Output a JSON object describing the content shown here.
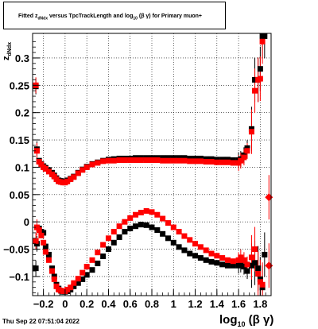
{
  "title": {
    "prefix": "Fitted  z",
    "sub": "dNdx",
    "mid": "  versus TpcTrackLength and log",
    "sub2": "10",
    "suffix": " (β γ) for Primary muon+"
  },
  "footer": {
    "date": "Thu Sep 22 07:51:04 2022"
  },
  "axes": {
    "ylabel_main": "z",
    "ylabel_sub": "dNdx",
    "xlabel_main": "log",
    "xlabel_sub": "10",
    "xlabel_tail": " (β γ)"
  },
  "chart_data": {
    "type": "scatter",
    "xlim": [
      -0.3,
      1.9
    ],
    "ylim": [
      -0.135,
      0.345
    ],
    "xticks": [
      -0.2,
      0,
      0.2,
      0.4,
      0.6,
      0.8,
      1,
      1.2,
      1.4,
      1.6,
      1.8
    ],
    "xtick_labels": [
      "−0.2",
      "0",
      "0.2",
      "0.4",
      "0.6",
      "0.8",
      "1",
      "1.2",
      "1.4",
      "1.6",
      "1.8"
    ],
    "yticks": [
      -0.1,
      -0.05,
      0,
      0.05,
      0.1,
      0.15,
      0.2,
      0.25,
      0.3
    ],
    "ytick_labels": [
      "−0.1",
      "−0.05",
      "0",
      "0.05",
      "0.1",
      "0.15",
      "0.2",
      "0.25",
      "0.3"
    ],
    "grid": true,
    "series": [
      {
        "color": "#000000",
        "marker": "square",
        "x": [
          -0.27,
          -0.26,
          -0.24,
          -0.22,
          -0.2,
          -0.18,
          -0.15,
          -0.12,
          -0.1,
          -0.08,
          -0.06,
          -0.04,
          -0.02,
          0.0,
          0.02,
          0.05,
          0.08,
          0.12,
          0.16,
          0.2,
          0.25,
          0.3,
          0.35,
          0.4,
          0.45,
          0.5,
          0.55,
          0.6,
          0.65,
          0.7,
          0.75,
          0.8,
          0.85,
          0.9,
          0.95,
          1.0,
          1.05,
          1.1,
          1.15,
          1.2,
          1.25,
          1.3,
          1.35,
          1.4,
          1.45,
          1.5,
          1.55,
          1.6,
          1.62,
          1.65,
          1.68,
          1.72,
          1.75,
          1.78,
          1.8,
          1.82,
          1.84
        ],
        "y_upper": [
          0.248,
          0.133,
          0.112,
          0.106,
          0.102,
          0.099,
          0.095,
          0.09,
          0.085,
          0.08,
          0.076,
          0.075,
          0.074,
          0.074,
          0.076,
          0.079,
          0.083,
          0.09,
          0.096,
          0.101,
          0.106,
          0.109,
          0.112,
          0.114,
          0.115,
          0.116,
          0.116,
          0.116,
          0.117,
          0.117,
          0.117,
          0.117,
          0.117,
          0.117,
          0.117,
          0.117,
          0.117,
          0.117,
          0.116,
          0.116,
          0.116,
          0.115,
          0.115,
          0.114,
          0.114,
          0.114,
          0.113,
          0.113,
          0.115,
          0.122,
          0.135,
          0.17,
          0.26,
          0.26,
          0.28,
          0.34,
          0.34
        ],
        "y_lower": [
          -0.085,
          -0.04,
          -0.012,
          -0.018,
          -0.02,
          -0.045,
          -0.06,
          -0.085,
          -0.1,
          -0.115,
          -0.122,
          -0.126,
          -0.128,
          -0.128,
          -0.127,
          -0.124,
          -0.118,
          -0.112,
          -0.105,
          -0.097,
          -0.088,
          -0.076,
          -0.063,
          -0.05,
          -0.038,
          -0.028,
          -0.018,
          -0.012,
          -0.008,
          -0.005,
          -0.006,
          -0.01,
          -0.015,
          -0.022,
          -0.03,
          -0.038,
          -0.046,
          -0.052,
          -0.058,
          -0.062,
          -0.066,
          -0.07,
          -0.073,
          -0.075,
          -0.078,
          -0.08,
          -0.08,
          -0.08,
          -0.078,
          -0.082,
          -0.09,
          -0.08,
          -0.075,
          -0.085,
          -0.105,
          -0.12,
          -0.06
        ]
      },
      {
        "color": "#ff0000",
        "marker": "square",
        "x": [
          -0.27,
          -0.26,
          -0.24,
          -0.22,
          -0.2,
          -0.18,
          -0.15,
          -0.12,
          -0.1,
          -0.08,
          -0.06,
          -0.04,
          -0.02,
          0.0,
          0.02,
          0.05,
          0.08,
          0.12,
          0.16,
          0.2,
          0.25,
          0.3,
          0.35,
          0.4,
          0.45,
          0.5,
          0.55,
          0.6,
          0.65,
          0.7,
          0.75,
          0.8,
          0.85,
          0.9,
          0.95,
          1.0,
          1.05,
          1.1,
          1.15,
          1.2,
          1.25,
          1.3,
          1.35,
          1.4,
          1.45,
          1.5,
          1.55,
          1.6,
          1.62,
          1.65,
          1.68,
          1.72,
          1.75,
          1.78,
          1.8,
          1.82,
          1.88
        ],
        "y_upper": [
          0.25,
          0.13,
          0.11,
          0.105,
          0.1,
          0.097,
          0.092,
          0.087,
          0.083,
          0.078,
          0.074,
          0.073,
          0.072,
          0.072,
          0.074,
          0.078,
          0.082,
          0.089,
          0.095,
          0.1,
          0.105,
          0.108,
          0.111,
          0.112,
          0.112,
          0.113,
          0.113,
          0.113,
          0.113,
          0.113,
          0.113,
          0.113,
          0.113,
          0.112,
          0.112,
          0.112,
          0.112,
          0.112,
          0.111,
          0.111,
          0.111,
          0.11,
          0.11,
          0.109,
          0.109,
          0.109,
          0.108,
          0.108,
          0.112,
          0.118,
          0.13,
          0.165,
          0.24,
          0.26,
          0.262,
          0.33,
          0.045
        ],
        "y_lower": [
          -0.035,
          -0.01,
          -0.015,
          -0.025,
          -0.038,
          -0.055,
          -0.07,
          -0.09,
          -0.105,
          -0.118,
          -0.124,
          -0.126,
          -0.127,
          -0.127,
          -0.124,
          -0.12,
          -0.112,
          -0.104,
          -0.093,
          -0.082,
          -0.07,
          -0.056,
          -0.042,
          -0.03,
          -0.018,
          -0.008,
          0.0,
          0.007,
          0.013,
          0.017,
          0.02,
          0.018,
          0.013,
          0.006,
          -0.002,
          -0.01,
          -0.018,
          -0.026,
          -0.033,
          -0.04,
          -0.046,
          -0.052,
          -0.058,
          -0.062,
          -0.066,
          -0.07,
          -0.072,
          -0.07,
          -0.065,
          -0.07,
          -0.078,
          -0.065,
          -0.05,
          -0.095,
          -0.11,
          -0.115,
          -0.08
        ]
      }
    ]
  }
}
